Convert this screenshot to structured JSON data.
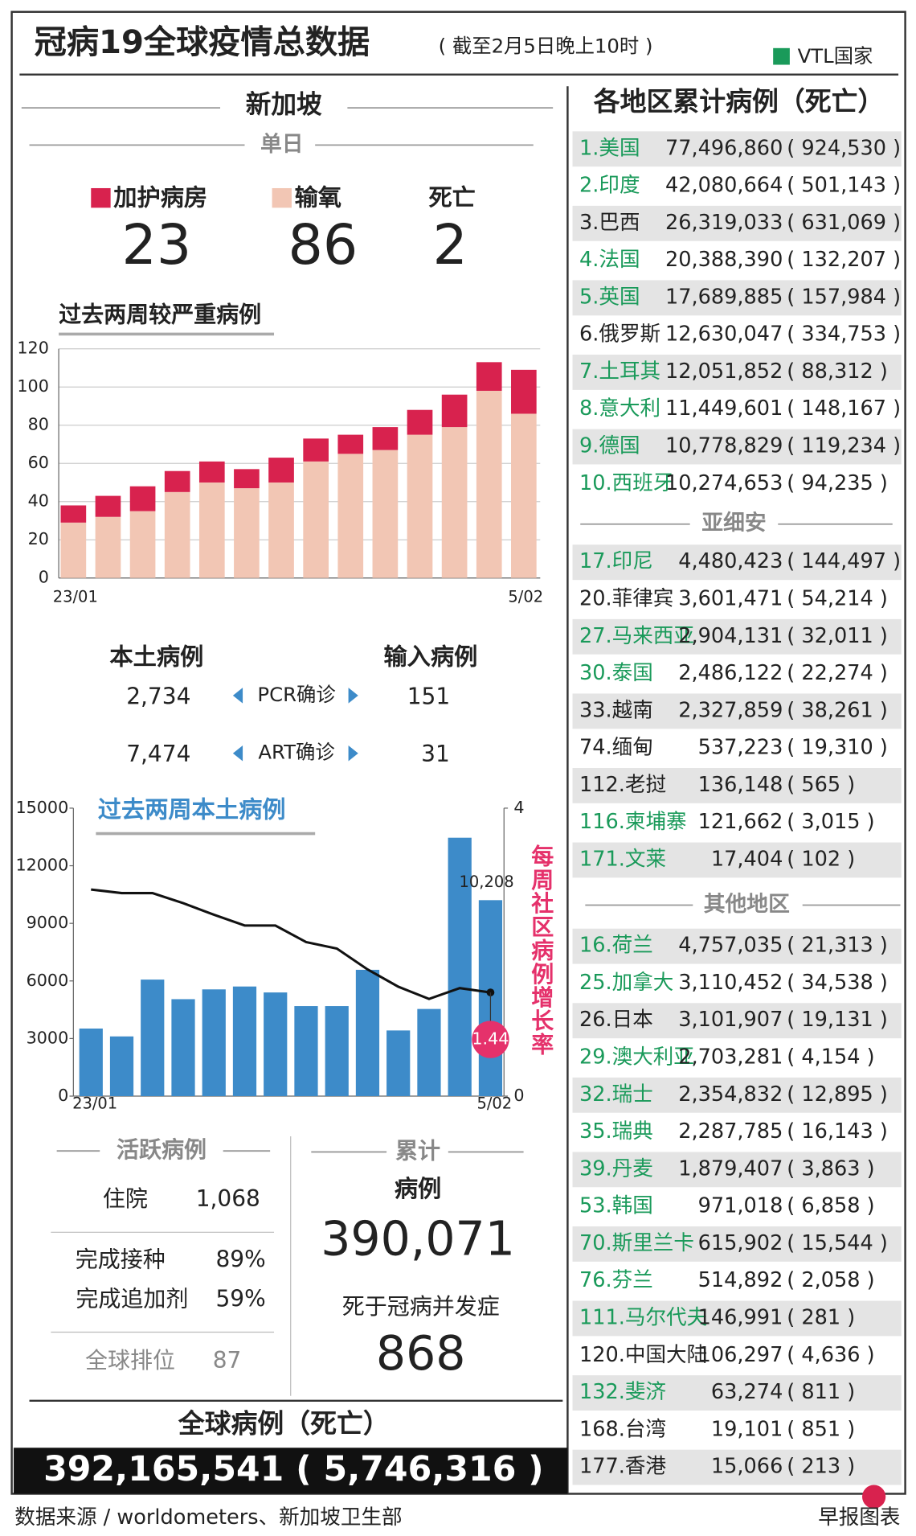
{
  "header": {
    "title": "冠病19全球疫情总数据",
    "subtitle": "( 截至2月5日晚上10时 )",
    "legend": "VTL国家"
  },
  "singapore": {
    "title": "新加坡",
    "daily_label": "单日",
    "death_label": "死亡",
    "icu": 23,
    "oxygen": 86,
    "deaths": 2
  },
  "chart_data": [
    {
      "type": "stacked_bar",
      "title": "过去两周较严重病例",
      "categories": [
        "23/01",
        null,
        null,
        null,
        null,
        null,
        null,
        null,
        null,
        null,
        null,
        null,
        null,
        "5/02"
      ],
      "series": [
        {
          "name": "输氧",
          "color": "#f2c6b4",
          "values": [
            29,
            32,
            35,
            45,
            50,
            47,
            50,
            61,
            65,
            67,
            75,
            79,
            98,
            86
          ]
        },
        {
          "name": "加护病房",
          "color": "#d8224e",
          "values": [
            9,
            11,
            13,
            11,
            11,
            10,
            13,
            12,
            10,
            12,
            13,
            17,
            15,
            23
          ]
        }
      ],
      "ylim": [
        0,
        120
      ],
      "yticks": [
        0,
        20,
        40,
        60,
        80,
        100,
        120
      ],
      "grid": true
    },
    {
      "type": "bar_line",
      "title": "过去两周本土病例",
      "categories": [
        "23/01",
        null,
        null,
        null,
        null,
        null,
        null,
        null,
        null,
        null,
        null,
        null,
        null,
        "5/02"
      ],
      "series": [
        {
          "type": "bar",
          "color": "#3d8bc9",
          "values": [
            3520,
            3110,
            6070,
            5050,
            5560,
            5710,
            5400,
            4690,
            4690,
            6580,
            3420,
            4540,
            13460,
            10208
          ],
          "value_labels": [
            null,
            null,
            null,
            null,
            null,
            null,
            null,
            null,
            null,
            null,
            null,
            null,
            null,
            "10,208"
          ]
        },
        {
          "type": "line",
          "name": "每周社区病例增长率",
          "axis": "y2",
          "color": "#111111",
          "values": [
            2.87,
            2.82,
            2.82,
            2.68,
            2.52,
            2.37,
            2.37,
            2.14,
            2.05,
            1.76,
            1.52,
            1.35,
            1.5,
            1.44
          ]
        }
      ],
      "ylim": [
        0,
        15000
      ],
      "yticks": [
        0,
        3000,
        6000,
        9000,
        12000,
        15000
      ],
      "y2lim": [
        0,
        4
      ],
      "y2ticks": [
        0,
        4
      ],
      "grid": false
    }
  ],
  "cases": {
    "local_label": "本土病例",
    "imported_label": "输入病例",
    "rows": [
      {
        "label": "PCR确诊",
        "local": "2,734",
        "imported": "151"
      },
      {
        "label": "ART确诊",
        "local": "7,474",
        "imported": "31"
      }
    ]
  },
  "active": {
    "title": "活跃病例",
    "rows": [
      [
        "住院",
        "1,068"
      ],
      [
        "完成接种",
        "89%"
      ],
      [
        "完成追加剂",
        "59%"
      ],
      [
        "全球排位",
        "87"
      ]
    ]
  },
  "cumulative": {
    "title": "累计",
    "cases_label": "病例",
    "cases": "390,071",
    "deaths_label": "死于冠病并发症",
    "deaths": "868"
  },
  "global": {
    "title": "全球病例（死亡）",
    "value": "392,165,541 ( 5,746,316 )"
  },
  "regions": {
    "title": "各地区累计病例（死亡）",
    "top": [
      {
        "label": "1.美国",
        "cases": "77,496,860",
        "deaths": "( 924,530 )",
        "vtl": true
      },
      {
        "label": "2.印度",
        "cases": "42,080,664",
        "deaths": "( 501,143 )",
        "vtl": true
      },
      {
        "label": "3.巴西",
        "cases": "26,319,033",
        "deaths": "( 631,069 )",
        "vtl": false
      },
      {
        "label": "4.法国",
        "cases": "20,388,390",
        "deaths": "( 132,207 )",
        "vtl": true
      },
      {
        "label": "5.英国",
        "cases": "17,689,885",
        "deaths": "( 157,984 )",
        "vtl": true
      },
      {
        "label": "6.俄罗斯",
        "cases": "12,630,047",
        "deaths": "( 334,753 )",
        "vtl": false
      },
      {
        "label": "7.土耳其",
        "cases": "12,051,852",
        "deaths": "( 88,312 )",
        "vtl": true
      },
      {
        "label": "8.意大利",
        "cases": "11,449,601",
        "deaths": "( 148,167 )",
        "vtl": true
      },
      {
        "label": "9.德国",
        "cases": "10,778,829",
        "deaths": "( 119,234 )",
        "vtl": true
      },
      {
        "label": "10.西班牙",
        "cases": "10,274,653",
        "deaths": "( 94,235 )",
        "vtl": true
      }
    ],
    "asean": {
      "title": "亚细安",
      "rows": [
        {
          "label": "17.印尼",
          "cases": "4,480,423",
          "deaths": "( 144,497 )",
          "vtl": true
        },
        {
          "label": "20.菲律宾",
          "cases": "3,601,471",
          "deaths": "( 54,214 )",
          "vtl": false
        },
        {
          "label": "27.马来西亚",
          "cases": "2,904,131",
          "deaths": "( 32,011 )",
          "vtl": true
        },
        {
          "label": "30.泰国",
          "cases": "2,486,122",
          "deaths": "( 22,274 )",
          "vtl": true
        },
        {
          "label": "33.越南",
          "cases": "2,327,859",
          "deaths": "( 38,261 )",
          "vtl": false
        },
        {
          "label": "74.缅甸",
          "cases": "537,223",
          "deaths": "( 19,310 )",
          "vtl": false
        },
        {
          "label": "112.老挝",
          "cases": "136,148",
          "deaths": "( 565 )",
          "vtl": false
        },
        {
          "label": "116.柬埔寨",
          "cases": "121,662",
          "deaths": "( 3,015 )",
          "vtl": true
        },
        {
          "label": "171.文莱",
          "cases": "17,404",
          "deaths": "( 102 )",
          "vtl": true
        }
      ]
    },
    "others": {
      "title": "其他地区",
      "rows": [
        {
          "label": "16.荷兰",
          "cases": "4,757,035",
          "deaths": "( 21,313 )",
          "vtl": true
        },
        {
          "label": "25.加拿大",
          "cases": "3,110,452",
          "deaths": "( 34,538 )",
          "vtl": true
        },
        {
          "label": "26.日本",
          "cases": "3,101,907",
          "deaths": "( 19,131 )",
          "vtl": false
        },
        {
          "label": "29.澳大利亚",
          "cases": "2,703,281",
          "deaths": "( 4,154 )",
          "vtl": true
        },
        {
          "label": "32.瑞士",
          "cases": "2,354,832",
          "deaths": "( 12,895 )",
          "vtl": true
        },
        {
          "label": "35.瑞典",
          "cases": "2,287,785",
          "deaths": "( 16,143 )",
          "vtl": true
        },
        {
          "label": "39.丹麦",
          "cases": "1,879,407",
          "deaths": "( 3,863 )",
          "vtl": true
        },
        {
          "label": "53.韩国",
          "cases": "971,018",
          "deaths": "( 6,858 )",
          "vtl": true
        },
        {
          "label": "70.斯里兰卡",
          "cases": "615,902",
          "deaths": "( 15,544 )",
          "vtl": true
        },
        {
          "label": "76.芬兰",
          "cases": "514,892",
          "deaths": "( 2,058 )",
          "vtl": true
        },
        {
          "label": "111.马尔代夫",
          "cases": "146,991",
          "deaths": "( 281 )",
          "vtl": true
        },
        {
          "label": "120.中国大陆",
          "cases": "106,297",
          "deaths": "( 4,636 )",
          "vtl": false
        },
        {
          "label": "132.斐济",
          "cases": "63,274",
          "deaths": "( 811 )",
          "vtl": true
        },
        {
          "label": "168.台湾",
          "cases": "19,101",
          "deaths": "( 851 )",
          "vtl": false
        },
        {
          "label": "177.香港",
          "cases": "15,066",
          "deaths": "( 213 )",
          "vtl": false
        }
      ]
    }
  },
  "footer": {
    "source": "数据来源 / worldometers、新加坡卫生部",
    "credit": "早报图表"
  }
}
